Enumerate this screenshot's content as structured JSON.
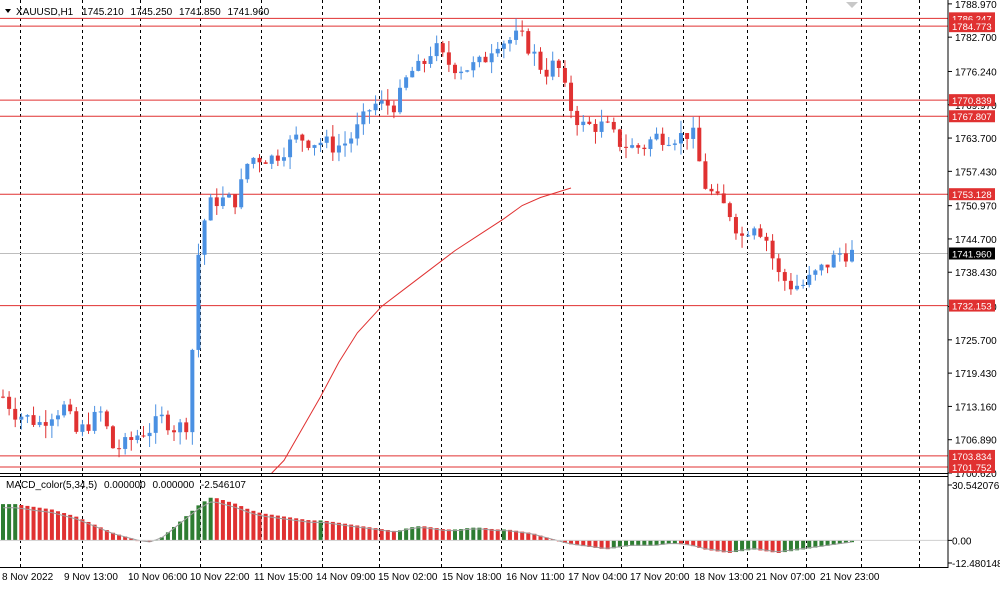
{
  "header": {
    "symbol": "XAUUSD,H1",
    "open": "1745.210",
    "high": "1745.250",
    "low": "1741.850",
    "close": "1741.960"
  },
  "macd_header": {
    "name": "MACD_color(5,34,5)",
    "v1": "0.000000",
    "v2": "0.000000",
    "v3": "-2.546107"
  },
  "colors": {
    "bull": "#4a90e2",
    "bear": "#e03131",
    "hline": "#e03131",
    "ma": "#e03131",
    "macd_pos": "#e03131",
    "macd_neg": "#2e7d32",
    "grid": "#000000"
  },
  "chart_data": {
    "type": "candlestick",
    "price_ticks": [
      "1788.970",
      "1782.700",
      "1776.240",
      "1769.970",
      "1763.700",
      "1757.430",
      "1750.970",
      "1744.700",
      "1738.430",
      "1731.970",
      "1725.700",
      "1719.430",
      "1713.160",
      "1706.890",
      "1700.620"
    ],
    "price_range": [
      1700.62,
      1789.7
    ],
    "time_labels": [
      "8 Nov 2022",
      "9 Nov 13:00",
      "10 Nov 06:00",
      "10 Nov 22:00",
      "11 Nov 15:00",
      "14 Nov 09:00",
      "15 Nov 02:00",
      "15 Nov 18:00",
      "16 Nov 11:00",
      "17 Nov 04:00",
      "17 Nov 20:00",
      "18 Nov 13:00",
      "21 Nov 07:00",
      "21 Nov 23:00"
    ],
    "levels": [
      {
        "label": "1786.247",
        "value": 1786.247
      },
      {
        "label": "1784.773",
        "value": 1784.773
      },
      {
        "label": "1770.839",
        "value": 1770.839
      },
      {
        "label": "1767.807",
        "value": 1767.807
      },
      {
        "label": "1753.128",
        "value": 1753.128
      },
      {
        "label": "1732.153",
        "value": 1732.153
      },
      {
        "label": "1703.834",
        "value": 1703.834
      },
      {
        "label": "1701.752",
        "value": 1701.752
      }
    ],
    "current_price": {
      "label": "1741.960",
      "value": 1741.96
    },
    "close_path": [
      1715,
      1712,
      1711,
      1710,
      1712,
      1713,
      1708,
      1710,
      1712,
      1705,
      1706,
      1708,
      1709,
      1711,
      1709,
      1710,
      1746,
      1752,
      1752,
      1752,
      1760,
      1760,
      1760,
      1762,
      1764,
      1763,
      1763,
      1762,
      1763,
      1766,
      1770,
      1770,
      1770,
      1776,
      1777,
      1781,
      1778,
      1777,
      1777,
      1778,
      1782,
      1782,
      1783,
      1780,
      1776,
      1778,
      1770,
      1766,
      1766,
      1766,
      1763,
      1762,
      1762,
      1764,
      1764,
      1764,
      1765,
      1755,
      1752,
      1750,
      1745,
      1748,
      1745,
      1738,
      1736,
      1736,
      1738,
      1740,
      1742,
      1742
    ],
    "ma_path": [
      {
        "bar": 44,
        "value": 1700.6
      },
      {
        "bar": 46,
        "value": 1703.0
      },
      {
        "bar": 49,
        "value": 1709.0
      },
      {
        "bar": 52,
        "value": 1715.0
      },
      {
        "bar": 55,
        "value": 1721.5
      },
      {
        "bar": 58,
        "value": 1727.0
      },
      {
        "bar": 62,
        "value": 1732.0
      },
      {
        "bar": 66,
        "value": 1735.5
      },
      {
        "bar": 70,
        "value": 1739.0
      },
      {
        "bar": 74,
        "value": 1742.5
      },
      {
        "bar": 78,
        "value": 1745.5
      },
      {
        "bar": 82,
        "value": 1748.5
      },
      {
        "bar": 85,
        "value": 1751.0
      },
      {
        "bar": 88,
        "value": 1752.5
      },
      {
        "bar": 93,
        "value": 1754.3
      }
    ],
    "macd_ticks": [
      "30.542076",
      "0.00",
      "-12.480148"
    ],
    "macd_range": [
      -12.480148,
      30.542076
    ],
    "macd_profile": [
      20,
      20,
      19,
      18,
      17,
      15,
      13,
      10,
      7,
      4,
      2,
      0,
      -1,
      2,
      8,
      14,
      20,
      24,
      22,
      20,
      17,
      15,
      14,
      13,
      12,
      11,
      11,
      10,
      9,
      8,
      7,
      6,
      5,
      7,
      8,
      7,
      6,
      6,
      7,
      7,
      6,
      6,
      5,
      4,
      2,
      0,
      -2,
      -3,
      -4,
      -5,
      -4,
      -3,
      -3,
      -3,
      -2,
      -2,
      -3,
      -5,
      -6,
      -7,
      -6,
      -5,
      -6,
      -7,
      -6,
      -5,
      -4,
      -3,
      -2,
      -1
    ]
  }
}
